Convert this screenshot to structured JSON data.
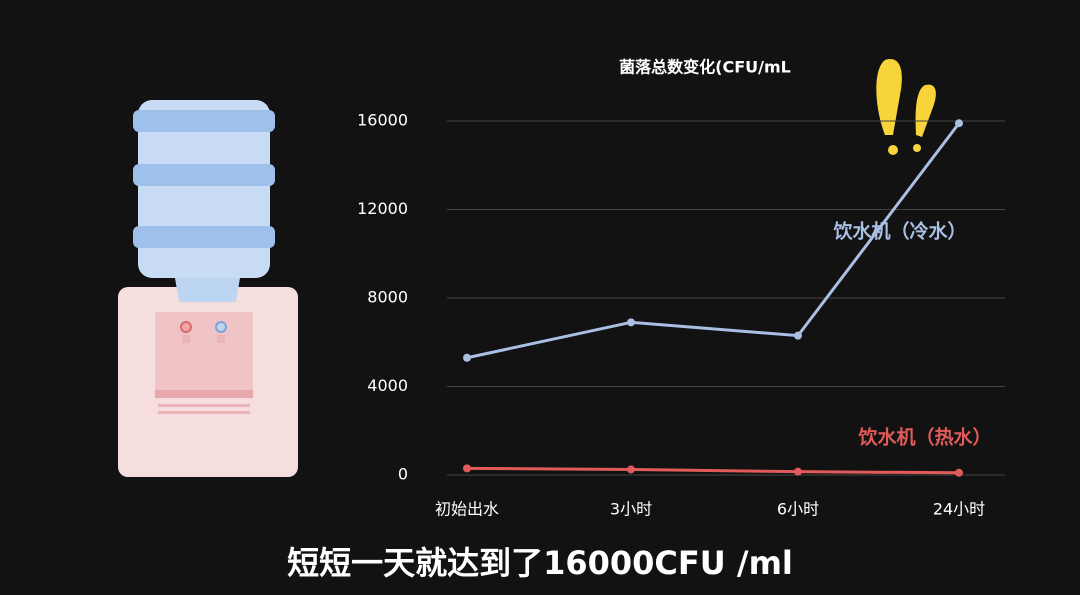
{
  "chart_data": {
    "type": "line",
    "title": "菌落总数变化(CFU/mL",
    "caption": "短短一天就达到了16000CFU /ml",
    "categories": [
      "初始出水",
      "3小时",
      "6小时",
      "24小时"
    ],
    "series": [
      {
        "name": "饮水机（冷水）",
        "color": "#a9c0e4",
        "values": [
          5300,
          6900,
          6300,
          15900
        ]
      },
      {
        "name": "饮水机（热水）",
        "color": "#e25a5a",
        "values": [
          300,
          250,
          150,
          100
        ]
      }
    ],
    "ylim": [
      0,
      16000
    ],
    "yticks": [
      0,
      4000,
      8000,
      12000,
      16000
    ],
    "grid": true
  }
}
